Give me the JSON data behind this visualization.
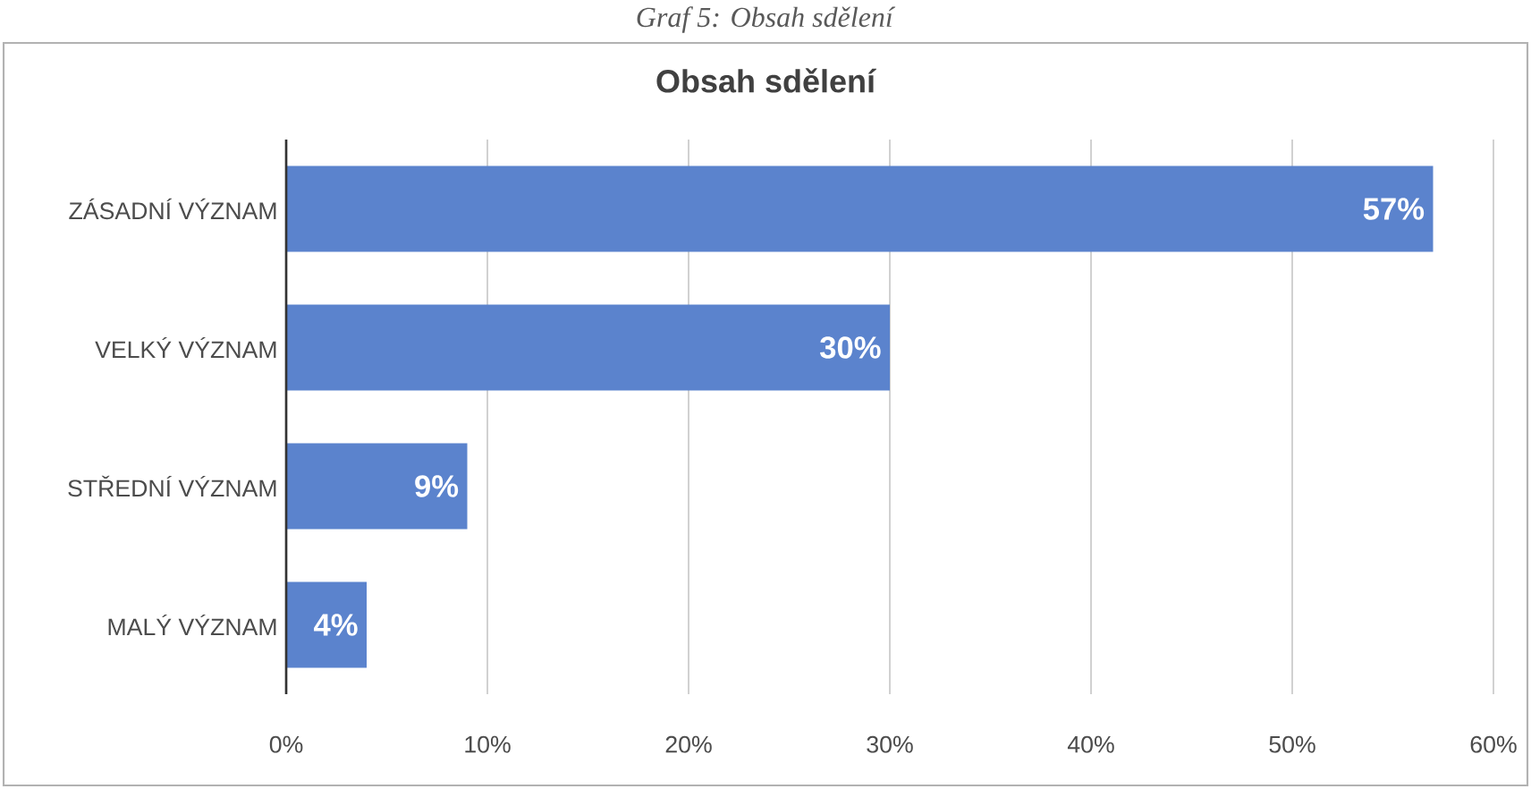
{
  "chart_data": {
    "type": "bar",
    "orientation": "horizontal",
    "title": "Obsah sdělení",
    "annotations": [
      "*Graf 5: Obsah sdělení*"
    ],
    "categories": [
      "ZÁSADNÍ VÝZNAM",
      "VELKÝ VÝZNAM",
      "STŘEDNÍ VÝZNAM",
      "MALÝ VÝZNAM"
    ],
    "values": [
      57,
      30,
      9,
      4
    ],
    "value_labels": [
      "57%",
      "30%",
      "9%",
      "4%"
    ],
    "color": "#5b83cd",
    "xlim": [
      0,
      60
    ],
    "xticks": [
      {
        "value": 0,
        "label": "0%"
      },
      {
        "value": 10,
        "label": "10%"
      },
      {
        "value": 20,
        "label": "20%"
      },
      {
        "value": 30,
        "label": "30%"
      },
      {
        "value": 40,
        "label": "40%"
      },
      {
        "value": 50,
        "label": "50%"
      },
      {
        "value": 60,
        "label": "60%"
      }
    ],
    "grid": "x"
  }
}
